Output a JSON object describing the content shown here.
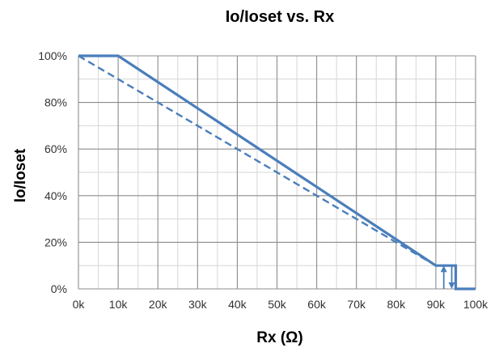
{
  "chart_data": {
    "type": "line",
    "title": "Io/Ioset vs. Rx",
    "xlabel": "Rx (Ω)",
    "ylabel": "Io/Ioset",
    "xlim": [
      0,
      100
    ],
    "ylim": [
      0,
      100
    ],
    "x_ticks": [
      0,
      10,
      20,
      30,
      40,
      50,
      60,
      70,
      80,
      90,
      100
    ],
    "x_tick_labels": [
      "0k",
      "10k",
      "20k",
      "30k",
      "40k",
      "50k",
      "60k",
      "70k",
      "80k",
      "90k",
      "100k"
    ],
    "y_ticks": [
      0,
      20,
      40,
      60,
      80,
      100
    ],
    "y_tick_labels": [
      "0%",
      "20%",
      "40%",
      "60%",
      "80%",
      "100%"
    ],
    "grid": true,
    "series": [
      {
        "style": "solid",
        "color": "#4a7ebb",
        "points": [
          [
            0,
            100
          ],
          [
            10,
            100
          ],
          [
            90,
            10
          ],
          [
            95,
            10
          ],
          [
            95,
            0
          ],
          [
            100,
            0
          ]
        ]
      },
      {
        "style": "dashed",
        "color": "#4a7ebb",
        "points": [
          [
            0,
            100
          ],
          [
            90,
            10
          ]
        ]
      }
    ],
    "annotations": [
      {
        "type": "arrow",
        "direction": "up",
        "x": 92,
        "from": 0,
        "to": 10,
        "color": "#4a7ebb"
      },
      {
        "type": "arrow",
        "direction": "down",
        "x": 94,
        "from": 10,
        "to": 0,
        "color": "#4a7ebb"
      }
    ]
  }
}
